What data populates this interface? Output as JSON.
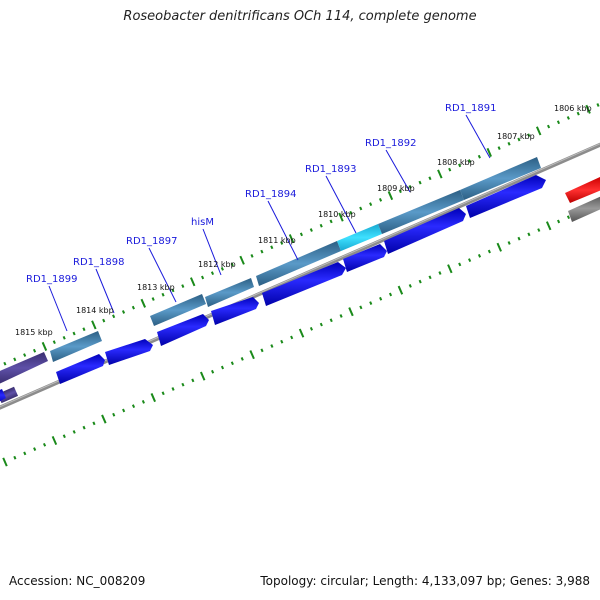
{
  "title": "Roseobacter denitrificans OCh 114, complete genome",
  "footer": {
    "accession": "Accession: NC_008209",
    "summary": "Topology: circular; Length: 4,133,097 bp; Genes: 3,988"
  },
  "colors": {
    "tick": "#1a8a1a",
    "backbone": "#8c8c8c",
    "gene_forward": "#1a1aee",
    "gene_top": "#4a86b8",
    "gene_highlight": "#22ccee",
    "gene_dark": "#4a3d8a",
    "gene_red": "#ee1111",
    "gene_gray": "#777777",
    "label": "#1a1adb"
  },
  "kbp_labels": [
    "1806 kbp",
    "1807 kbp",
    "1808 kbp",
    "1809 kbp",
    "1810 kbp",
    "1811 kbp",
    "1812 kbp",
    "1813 kbp",
    "1814 kbp",
    "1815 kbp"
  ],
  "gene_labels": [
    "RD1_1891",
    "RD1_1892",
    "RD1_1893",
    "RD1_1894",
    "hisM",
    "RD1_1897",
    "RD1_1898",
    "RD1_1899"
  ]
}
